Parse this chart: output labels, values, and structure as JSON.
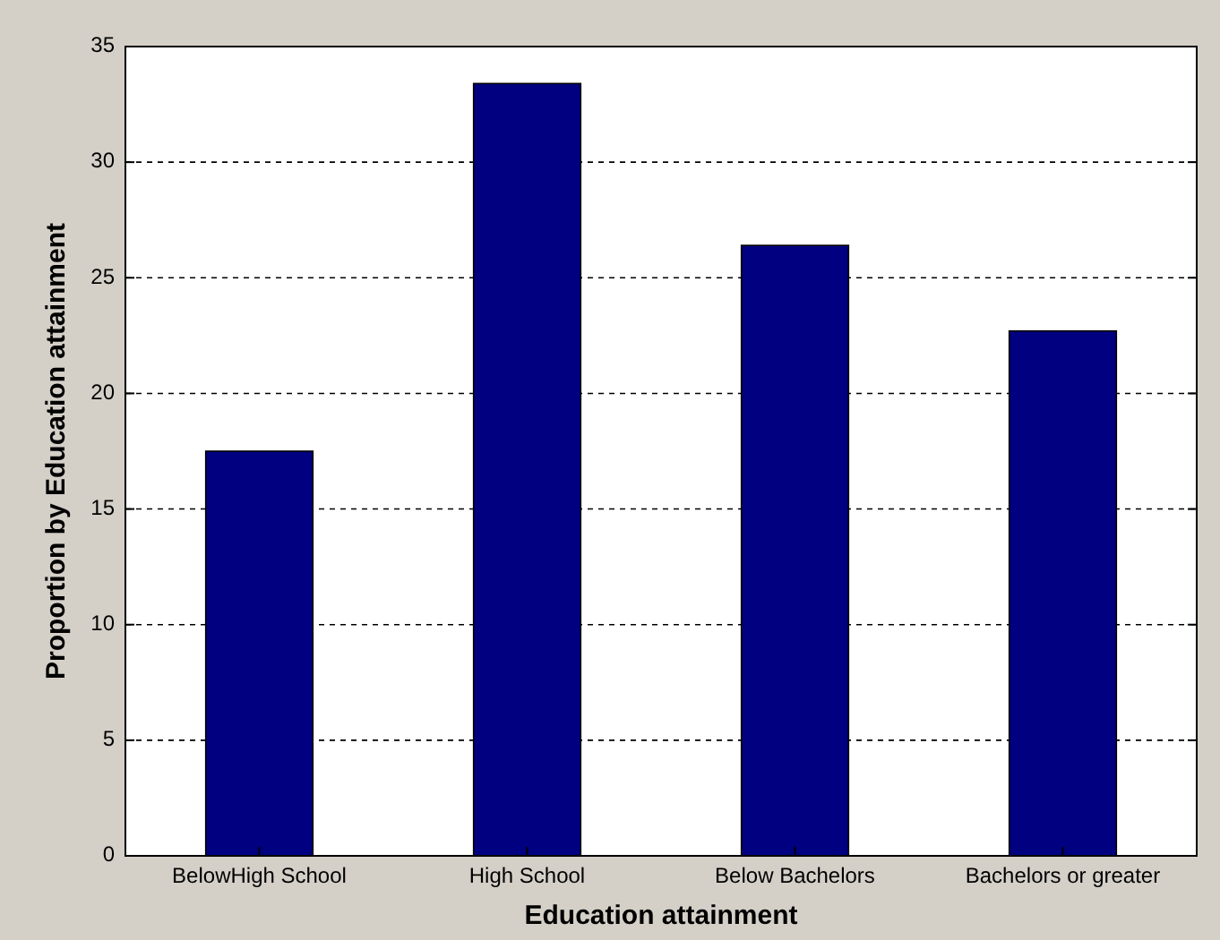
{
  "chart_data": {
    "type": "bar",
    "xlabel": "Education attainment",
    "ylabel": "Proportion by Education attainment",
    "categories": [
      "BelowHigh School",
      "High School",
      "Below Bachelors",
      "Bachelors or greater"
    ],
    "values": [
      17.5,
      33.4,
      26.4,
      22.7
    ],
    "color": "#000080",
    "ylim": [
      0,
      35
    ],
    "yticks": [
      0,
      5,
      10,
      15,
      20,
      25,
      30,
      35
    ],
    "grid": "y"
  }
}
